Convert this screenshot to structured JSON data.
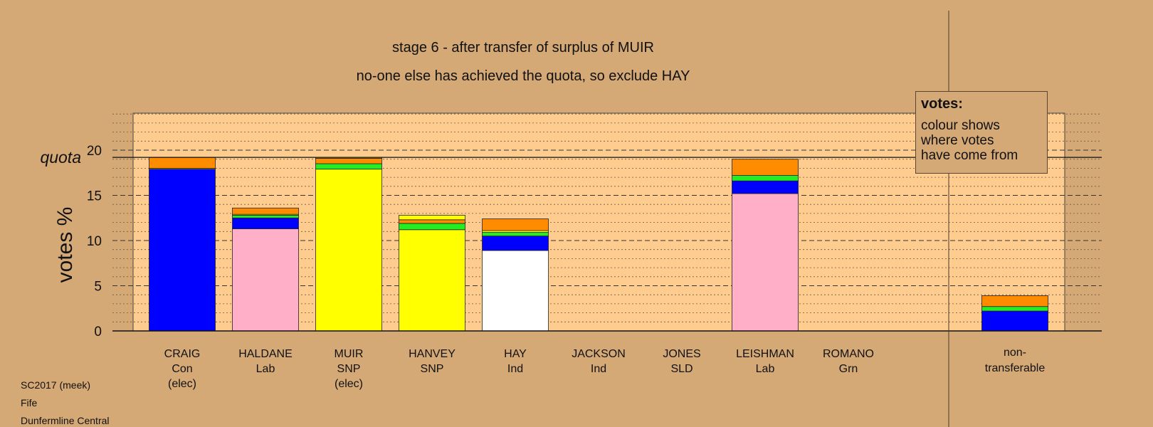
{
  "title": "stage 6 - after transfer of surplus of MUIR",
  "subtitle": "no-one else has achieved the quota, so exclude HAY",
  "quota_label": "quota",
  "legend": {
    "title": "votes:",
    "lines": [
      "colour shows",
      "where votes",
      "have come from"
    ]
  },
  "footer": [
    "SC2017 (meek)",
    "Fife",
    "Dunfermline Central"
  ],
  "colors": {
    "background": "#D4A976",
    "plot_area": "#FFCC8F",
    "Con": "#0000FF",
    "Lab": "#FFB0C8",
    "SNP": "#FFFF00",
    "Ind": "#FFFFFF",
    "Grn": "#22EE22",
    "SLD": "#FF8C00"
  },
  "chart_data": {
    "type": "bar",
    "stacked": true,
    "ylabel": "votes %",
    "ylim": [
      0,
      20
    ],
    "yticks": [
      0,
      5,
      10,
      15,
      20
    ],
    "quota": 19.2,
    "grid": "dashed major lines at 5, dotted minor lines at 1",
    "legend_position": "top-right",
    "categories": [
      {
        "name": "CRAIG",
        "party": "Con",
        "status": "(elec)"
      },
      {
        "name": "HALDANE",
        "party": "Lab",
        "status": ""
      },
      {
        "name": "MUIR",
        "party": "SNP",
        "status": "(elec)"
      },
      {
        "name": "HANVEY",
        "party": "SNP",
        "status": ""
      },
      {
        "name": "HAY",
        "party": "Ind",
        "status": ""
      },
      {
        "name": "JACKSON",
        "party": "Ind",
        "status": ""
      },
      {
        "name": "JONES",
        "party": "SLD",
        "status": ""
      },
      {
        "name": "LEISHMAN",
        "party": "Lab",
        "status": ""
      },
      {
        "name": "ROMANO",
        "party": "Grn",
        "status": ""
      }
    ],
    "nontransferable_label": [
      "non-",
      "transferable"
    ],
    "bars": [
      {
        "candidate": "CRAIG",
        "segments": [
          {
            "source": "Con",
            "value": 17.9
          },
          {
            "source": "SNP",
            "value": 0.1
          },
          {
            "source": "SLD",
            "value": 1.2
          }
        ]
      },
      {
        "candidate": "HALDANE",
        "segments": [
          {
            "source": "Lab",
            "value": 11.3
          },
          {
            "source": "Con",
            "value": 1.2
          },
          {
            "source": "Grn",
            "value": 0.3
          },
          {
            "source": "SNP",
            "value": 0.1
          },
          {
            "source": "SLD",
            "value": 0.7
          }
        ]
      },
      {
        "candidate": "MUIR",
        "segments": [
          {
            "source": "SNP",
            "value": 17.9
          },
          {
            "source": "Grn",
            "value": 0.6
          },
          {
            "source": "SLD",
            "value": 0.6
          },
          {
            "source": "SNP",
            "value": 0.1
          }
        ]
      },
      {
        "candidate": "HANVEY",
        "segments": [
          {
            "source": "SNP",
            "value": 11.2
          },
          {
            "source": "Grn",
            "value": 0.7
          },
          {
            "source": "SLD",
            "value": 0.4
          },
          {
            "source": "SNP",
            "value": 0.5
          }
        ]
      },
      {
        "candidate": "HAY",
        "segments": [
          {
            "source": "Ind",
            "value": 8.9
          },
          {
            "source": "Con",
            "value": 1.6
          },
          {
            "source": "Grn",
            "value": 0.4
          },
          {
            "source": "SNP",
            "value": 0.2
          },
          {
            "source": "SLD",
            "value": 1.3
          }
        ]
      },
      {
        "candidate": "JACKSON",
        "segments": []
      },
      {
        "candidate": "JONES",
        "segments": []
      },
      {
        "candidate": "LEISHMAN",
        "segments": [
          {
            "source": "Lab",
            "value": 15.2
          },
          {
            "source": "Con",
            "value": 1.4
          },
          {
            "source": "Grn",
            "value": 0.6
          },
          {
            "source": "SLD",
            "value": 1.8
          }
        ]
      },
      {
        "candidate": "ROMANO",
        "segments": []
      },
      {
        "candidate": "non-transferable",
        "segments": [
          {
            "source": "Con",
            "value": 2.2
          },
          {
            "source": "Grn",
            "value": 0.5
          },
          {
            "source": "SLD",
            "value": 1.2
          }
        ]
      }
    ]
  }
}
